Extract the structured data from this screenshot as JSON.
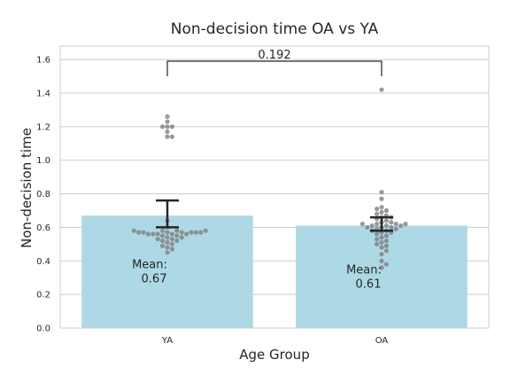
{
  "chart_data": {
    "type": "bar",
    "title": "Non-decision time OA vs YA",
    "xlabel": "Age Group",
    "ylabel": "Non-decision time",
    "categories": [
      "YA",
      "OA"
    ],
    "values": [
      0.67,
      0.61
    ],
    "error_bars": [
      [
        0.6,
        0.76
      ],
      [
        0.58,
        0.66
      ]
    ],
    "ylim": [
      0,
      1.68
    ],
    "yticks": [
      "0.0",
      "0.2",
      "0.4",
      "0.6",
      "0.8",
      "1.0",
      "1.2",
      "1.4",
      "1.6"
    ],
    "grid": true,
    "bar_color": "#add8e6",
    "point_color": "#808080",
    "significance": {
      "pair": [
        "YA",
        "OA"
      ],
      "label": "0.192",
      "y": 1.59
    },
    "mean_labels": [
      {
        "category": "YA",
        "line1": "Mean:",
        "line2": "0.67"
      },
      {
        "category": "OA",
        "line1": "Mean:",
        "line2": "0.61"
      }
    ],
    "points": {
      "YA": [
        1.26,
        1.23,
        1.2,
        1.2,
        1.2,
        1.17,
        1.14,
        1.14,
        0.64,
        0.6,
        0.58,
        0.58,
        0.58,
        0.58,
        0.57,
        0.57,
        0.57,
        0.57,
        0.57,
        0.57,
        0.57,
        0.56,
        0.56,
        0.56,
        0.56,
        0.56,
        0.55,
        0.55,
        0.54,
        0.54,
        0.53,
        0.53,
        0.52,
        0.52,
        0.51,
        0.5,
        0.49,
        0.48,
        0.47,
        0.45
      ],
      "OA": [
        1.42,
        0.81,
        0.77,
        0.72,
        0.71,
        0.7,
        0.69,
        0.68,
        0.67,
        0.66,
        0.66,
        0.65,
        0.64,
        0.63,
        0.63,
        0.62,
        0.62,
        0.62,
        0.62,
        0.61,
        0.61,
        0.61,
        0.6,
        0.6,
        0.6,
        0.59,
        0.59,
        0.58,
        0.58,
        0.57,
        0.57,
        0.56,
        0.55,
        0.54,
        0.53,
        0.52,
        0.51,
        0.5,
        0.49,
        0.48,
        0.46,
        0.44,
        0.4,
        0.38,
        0.36
      ]
    }
  }
}
